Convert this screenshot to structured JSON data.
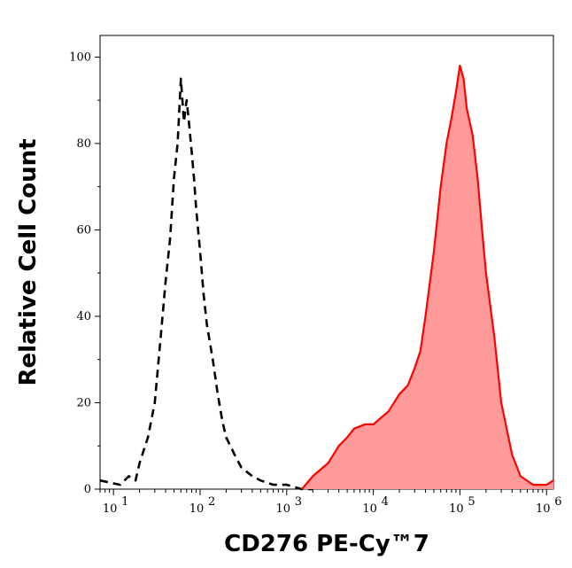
{
  "chart_data": {
    "type": "area",
    "xlabel": "CD276 PE-Cy™7",
    "ylabel": "Relative Cell Count",
    "x_scale": "log",
    "xlim": [
      7,
      1200000
    ],
    "ylim": [
      0,
      105
    ],
    "grid": false,
    "y_ticks": [
      0,
      20,
      40,
      60,
      80,
      100
    ],
    "x_ticks": [
      {
        "value": 10,
        "base": "10",
        "exp": "1"
      },
      {
        "value": 100,
        "base": "10",
        "exp": "2"
      },
      {
        "value": 1000,
        "base": "10",
        "exp": "3"
      },
      {
        "value": 10000,
        "base": "10",
        "exp": "4"
      },
      {
        "value": 100000,
        "base": "10",
        "exp": "5"
      },
      {
        "value": 1000000,
        "base": "10",
        "exp": "6"
      }
    ],
    "series": [
      {
        "style": "dashed-line",
        "color": "#000000",
        "x": [
          7,
          12,
          15,
          18,
          20,
          25,
          30,
          35,
          40,
          45,
          50,
          55,
          60,
          65,
          70,
          75,
          80,
          85,
          90,
          100,
          110,
          120,
          140,
          160,
          180,
          200,
          250,
          300,
          400,
          500,
          700,
          1000,
          1500,
          2000
        ],
        "y": [
          2,
          1,
          3,
          2,
          6,
          12,
          20,
          35,
          48,
          58,
          72,
          80,
          95,
          85,
          90,
          84,
          78,
          72,
          65,
          55,
          45,
          38,
          30,
          22,
          16,
          12,
          8,
          5,
          3,
          2,
          1,
          1,
          0,
          0
        ]
      },
      {
        "style": "filled-area",
        "color": "#ff0000",
        "fill": "#ff9a9a",
        "x": [
          1500,
          2000,
          3000,
          4000,
          5000,
          6000,
          8000,
          10000,
          15000,
          20000,
          25000,
          30000,
          35000,
          40000,
          50000,
          60000,
          70000,
          80000,
          90000,
          100000,
          110000,
          120000,
          140000,
          160000,
          180000,
          200000,
          250000,
          300000,
          400000,
          500000,
          700000,
          1000000,
          1200000
        ],
        "y": [
          0,
          3,
          6,
          10,
          12,
          14,
          15,
          15,
          18,
          22,
          24,
          28,
          32,
          40,
          55,
          70,
          80,
          86,
          92,
          98,
          95,
          88,
          82,
          72,
          60,
          50,
          35,
          20,
          8,
          3,
          1,
          1,
          2
        ]
      }
    ]
  }
}
